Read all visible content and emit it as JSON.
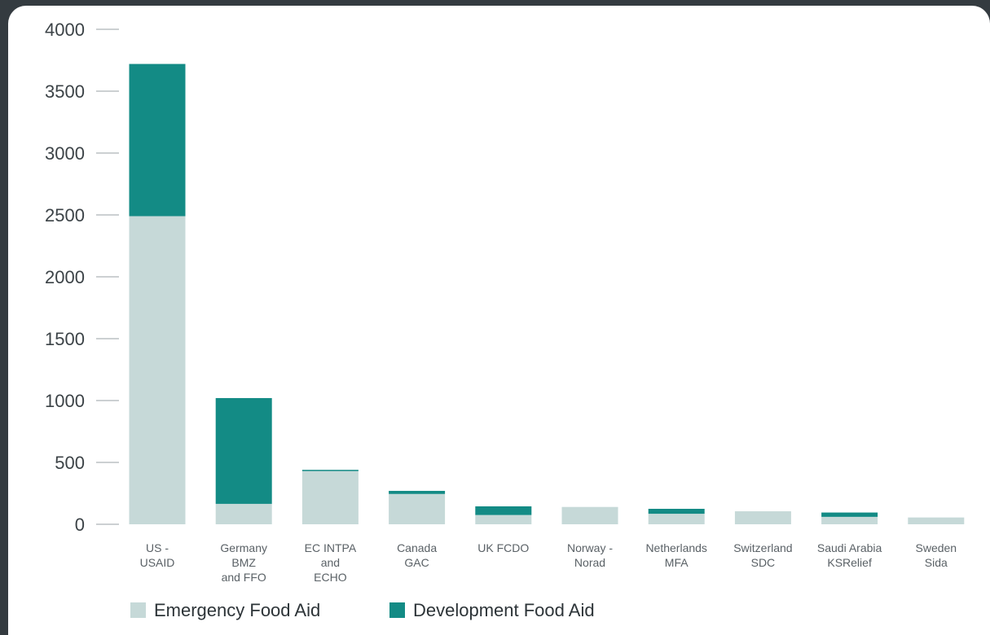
{
  "chart_data": {
    "type": "bar",
    "stacked": true,
    "categories": [
      [
        "US -",
        "USAID"
      ],
      [
        "Germany",
        "BMZ",
        "and FFO"
      ],
      [
        "EC INTPA",
        "and",
        "ECHO"
      ],
      [
        "Canada",
        "GAC"
      ],
      [
        "UK FCDO"
      ],
      [
        "Norway -",
        "Norad"
      ],
      [
        "Netherlands",
        "MFA"
      ],
      [
        "Switzerland",
        "SDC"
      ],
      [
        "Saudi Arabia",
        "KSRelief"
      ],
      [
        "Sweden",
        "Sida"
      ]
    ],
    "series": [
      {
        "name": "Emergency Food Aid",
        "color": "#c6d9d8",
        "values": [
          2490,
          165,
          430,
          245,
          75,
          140,
          85,
          105,
          60,
          55
        ]
      },
      {
        "name": "Development Food Aid",
        "color": "#138b85",
        "values": [
          1230,
          855,
          10,
          25,
          70,
          0,
          40,
          0,
          35,
          0
        ]
      }
    ],
    "ylim": [
      0,
      4000
    ],
    "yticks": [
      0,
      500,
      1000,
      1500,
      2000,
      2500,
      3000,
      3500,
      4000
    ],
    "grid": false,
    "legend_position": "bottom-left"
  }
}
